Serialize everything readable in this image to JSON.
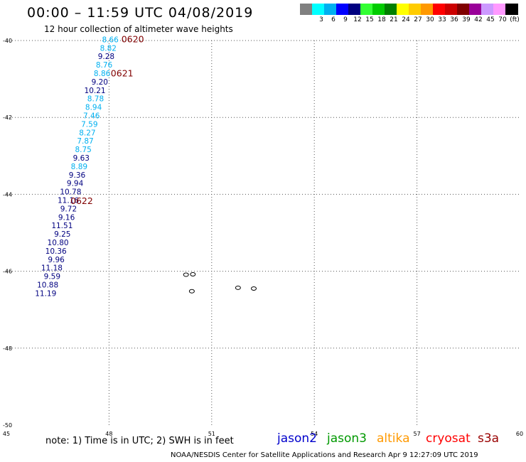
{
  "header": {
    "title": "00:00 – 11:59 UTC 04/08/2019",
    "subtitle": "12 hour collection of altimeter wave heights"
  },
  "legend": {
    "bins": [
      {
        "label": "",
        "color": "#808080"
      },
      {
        "label": "3",
        "color": "#00ffff"
      },
      {
        "label": "6",
        "color": "#00b0f0"
      },
      {
        "label": "9",
        "color": "#0000ff"
      },
      {
        "label": "12",
        "color": "#000080"
      },
      {
        "label": "15",
        "color": "#33ff33"
      },
      {
        "label": "18",
        "color": "#00cc00"
      },
      {
        "label": "21",
        "color": "#008000"
      },
      {
        "label": "24",
        "color": "#ffff00"
      },
      {
        "label": "27",
        "color": "#ffcc00"
      },
      {
        "label": "30",
        "color": "#ff9900"
      },
      {
        "label": "33",
        "color": "#ff0000"
      },
      {
        "label": "36",
        "color": "#cc0000"
      },
      {
        "label": "39",
        "color": "#800000"
      },
      {
        "label": "42",
        "color": "#990099"
      },
      {
        "label": "45",
        "color": "#cc99ff"
      },
      {
        "label": "70",
        "color": "#ff99ff"
      },
      {
        "label": "(ft)",
        "color": "#000000"
      }
    ]
  },
  "map": {
    "lon_range": [
      45,
      60
    ],
    "lat_range": [
      -50,
      -40
    ],
    "lon_ticks": [
      "45",
      "48",
      "51",
      "54",
      "57",
      "60"
    ],
    "lat_ticks": [
      "-40",
      "-42",
      "-44",
      "-46",
      "-48",
      "-50"
    ],
    "grid": "dotted",
    "observations": [
      {
        "text": "8.66",
        "lon": 48.28,
        "lat": -39.97,
        "color": "#00b0f0"
      },
      {
        "text": "8.82",
        "lon": 48.22,
        "lat": -40.19,
        "color": "#00b0f0"
      },
      {
        "text": "9.28",
        "lon": 48.16,
        "lat": -40.41,
        "color": "#000080"
      },
      {
        "text": "8.76",
        "lon": 48.1,
        "lat": -40.63,
        "color": "#00b0f0"
      },
      {
        "text": "8.86",
        "lon": 48.04,
        "lat": -40.85,
        "color": "#00b0f0"
      },
      {
        "text": "9.20",
        "lon": 47.97,
        "lat": -41.07,
        "color": "#000080"
      },
      {
        "text": "10.21",
        "lon": 47.9,
        "lat": -41.29,
        "color": "#000080"
      },
      {
        "text": "8.78",
        "lon": 47.85,
        "lat": -41.51,
        "color": "#00b0f0"
      },
      {
        "text": "8.94",
        "lon": 47.79,
        "lat": -41.73,
        "color": "#00b0f0"
      },
      {
        "text": "7.46",
        "lon": 47.73,
        "lat": -41.95,
        "color": "#00b0f0"
      },
      {
        "text": "7.59",
        "lon": 47.67,
        "lat": -42.17,
        "color": "#00b0f0"
      },
      {
        "text": "8.27",
        "lon": 47.61,
        "lat": -42.39,
        "color": "#00b0f0"
      },
      {
        "text": "7.87",
        "lon": 47.55,
        "lat": -42.61,
        "color": "#00b0f0"
      },
      {
        "text": "8.75",
        "lon": 47.49,
        "lat": -42.83,
        "color": "#00b0f0"
      },
      {
        "text": "9.63",
        "lon": 47.43,
        "lat": -43.05,
        "color": "#000080"
      },
      {
        "text": "8.89",
        "lon": 47.37,
        "lat": -43.27,
        "color": "#00b0f0"
      },
      {
        "text": "9.36",
        "lon": 47.31,
        "lat": -43.49,
        "color": "#000080"
      },
      {
        "text": "9.94",
        "lon": 47.25,
        "lat": -43.71,
        "color": "#000080"
      },
      {
        "text": "10.78",
        "lon": 47.19,
        "lat": -43.93,
        "color": "#000080"
      },
      {
        "text": "11.16",
        "lon": 47.12,
        "lat": -44.15,
        "color": "#000080"
      },
      {
        "text": "9.72",
        "lon": 47.06,
        "lat": -44.37,
        "color": "#000080"
      },
      {
        "text": "9.16",
        "lon": 47.0,
        "lat": -44.59,
        "color": "#000080"
      },
      {
        "text": "11.51",
        "lon": 46.94,
        "lat": -44.81,
        "color": "#000080"
      },
      {
        "text": "9.25",
        "lon": 46.88,
        "lat": -45.03,
        "color": "#000080"
      },
      {
        "text": "10.80",
        "lon": 46.82,
        "lat": -45.25,
        "color": "#000080"
      },
      {
        "text": "10.36",
        "lon": 46.76,
        "lat": -45.47,
        "color": "#000080"
      },
      {
        "text": "9.96",
        "lon": 46.7,
        "lat": -45.69,
        "color": "#000080"
      },
      {
        "text": "11.18",
        "lon": 46.64,
        "lat": -45.91,
        "color": "#000080"
      },
      {
        "text": "9.59",
        "lon": 46.58,
        "lat": -46.13,
        "color": "#000080"
      },
      {
        "text": "10.88",
        "lon": 46.52,
        "lat": -46.35,
        "color": "#000080"
      },
      {
        "text": "11.19",
        "lon": 46.46,
        "lat": -46.57,
        "color": "#000080"
      }
    ],
    "time_labels": [
      {
        "text": "0620",
        "lon": 48.36,
        "lat": -39.97,
        "color": "#800000"
      },
      {
        "text": "0621",
        "lon": 48.05,
        "lat": -40.86,
        "color": "#800000"
      },
      {
        "text": "0622",
        "lon": 46.87,
        "lat": -44.18,
        "color": "#800000"
      }
    ],
    "islands": [
      {
        "name": "island-a",
        "lon": 50.25,
        "lat": -46.09
      },
      {
        "name": "island-b",
        "lon": 50.45,
        "lat": -46.08
      },
      {
        "name": "island-c",
        "lon": 50.42,
        "lat": -46.52
      },
      {
        "name": "island-d",
        "lon": 51.77,
        "lat": -46.43
      },
      {
        "name": "island-e",
        "lon": 52.23,
        "lat": -46.45
      }
    ]
  },
  "footer": {
    "note": "note:  1) Time is in UTC;  2) SWH is in feet",
    "satellites": [
      {
        "name": "jason2",
        "color": "#0000cc"
      },
      {
        "name": "jason3",
        "color": "#009900"
      },
      {
        "name": "altika",
        "color": "#ff9900"
      },
      {
        "name": "cryosat",
        "color": "#ff0000"
      },
      {
        "name": "s3a",
        "color": "#990000"
      }
    ],
    "credit": "NOAA/NESDIS Center for Satellite Applications and Research    Apr  9 12:27:09 UTC 2019"
  }
}
